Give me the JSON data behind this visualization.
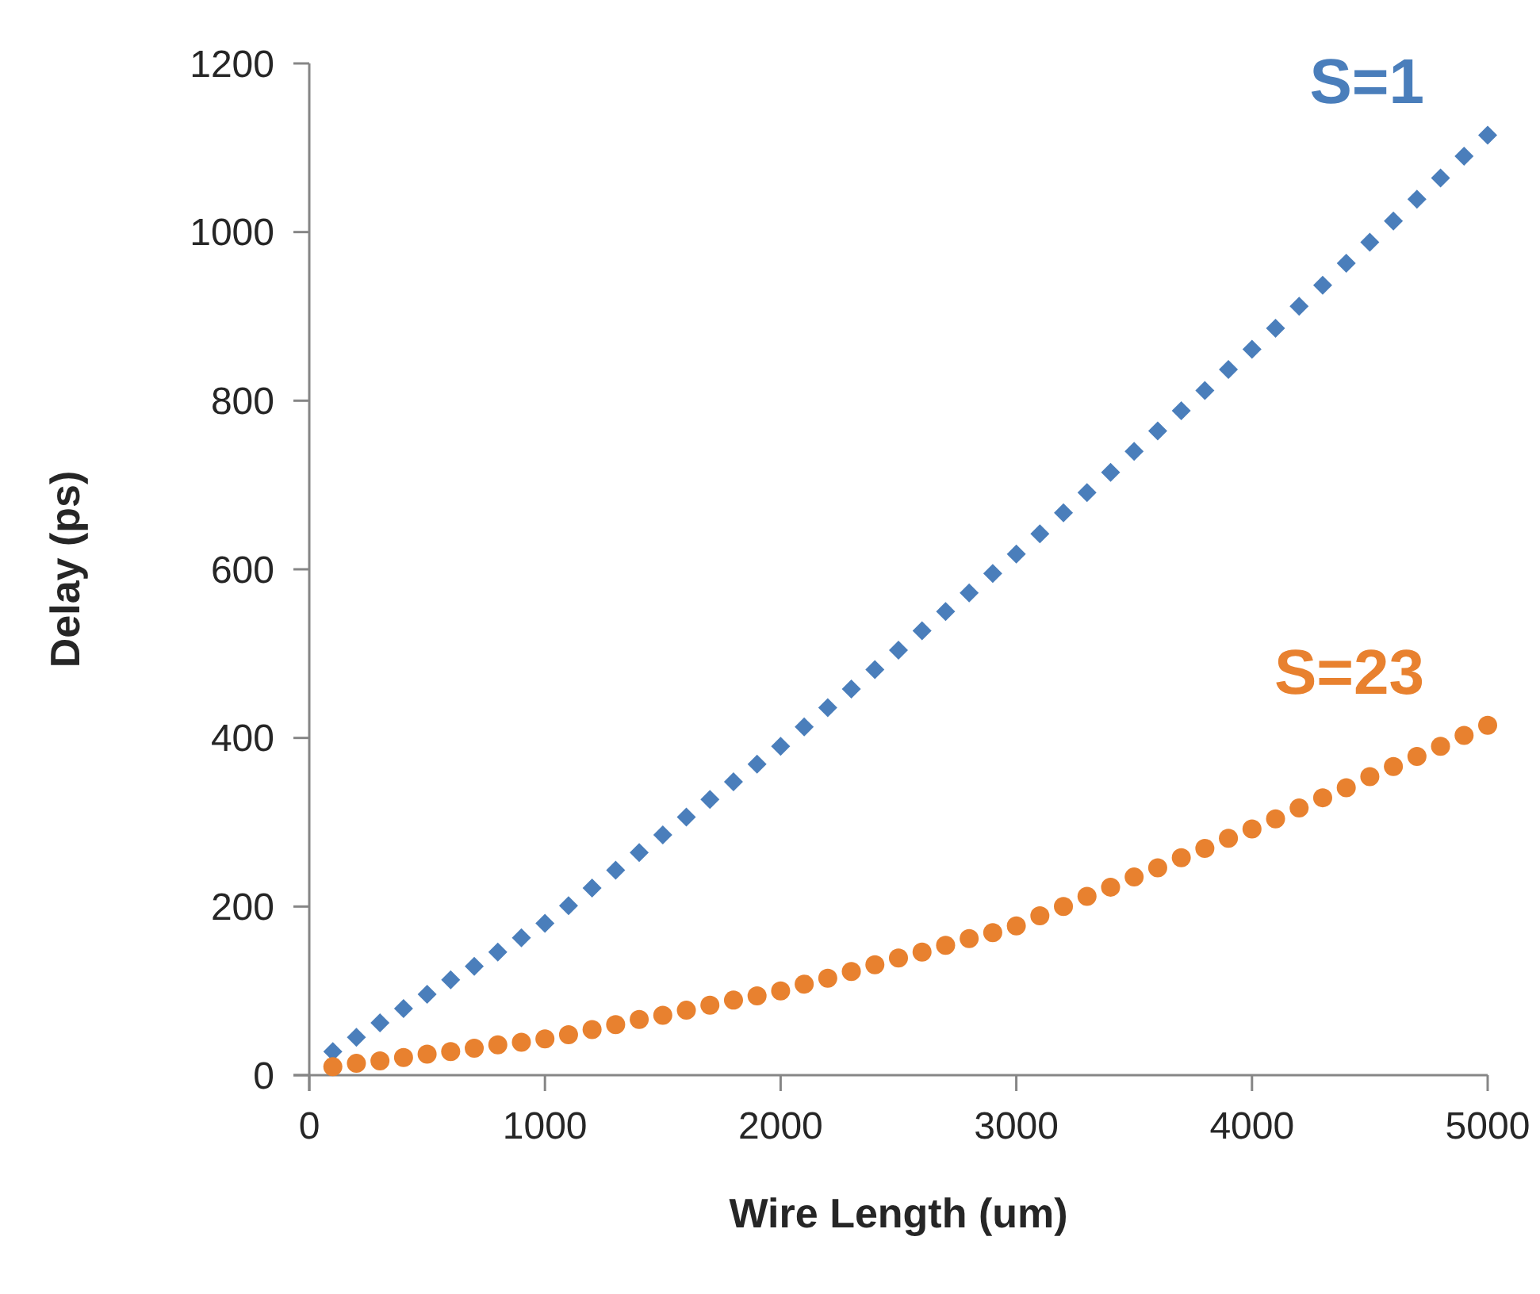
{
  "chart_data": {
    "type": "scatter",
    "xlabel": "Wire Length (um)",
    "ylabel": "Delay (ps)",
    "xlim": [
      0,
      5000
    ],
    "xticks": [
      0,
      1000,
      2000,
      3000,
      4000,
      5000
    ],
    "ylim": [
      0,
      1200
    ],
    "yticks": [
      0,
      200,
      400,
      600,
      800,
      1000,
      1200
    ],
    "grid": false,
    "legend": false,
    "x": [
      100,
      200,
      300,
      400,
      500,
      600,
      700,
      800,
      900,
      1000,
      1100,
      1200,
      1300,
      1400,
      1500,
      1600,
      1700,
      1800,
      1900,
      2000,
      2100,
      2200,
      2300,
      2400,
      2500,
      2600,
      2700,
      2800,
      2900,
      3000,
      3100,
      3200,
      3300,
      3400,
      3500,
      3600,
      3700,
      3800,
      3900,
      4000,
      4100,
      4200,
      4300,
      4400,
      4500,
      4600,
      4700,
      4800,
      4900,
      5000
    ],
    "series": [
      {
        "name": "S=1",
        "color": "#4a7ebb",
        "marker": "diamond",
        "values": [
          28,
          45,
          62,
          79,
          96,
          113,
          129,
          146,
          163,
          180,
          201,
          222,
          243,
          264,
          285,
          306,
          327,
          348,
          369,
          390,
          413,
          436,
          458,
          481,
          504,
          527,
          550,
          572,
          595,
          618,
          642,
          667,
          691,
          715,
          740,
          764,
          788,
          812,
          837,
          861,
          886,
          912,
          937,
          963,
          988,
          1013,
          1039,
          1064,
          1090,
          1115
        ]
      },
      {
        "name": "S=23",
        "color": "#e8812f",
        "marker": "circle",
        "values": [
          10,
          14,
          17,
          21,
          25,
          28,
          32,
          36,
          39,
          43,
          48,
          54,
          60,
          66,
          71,
          77,
          83,
          89,
          94,
          100,
          108,
          115,
          123,
          131,
          139,
          146,
          154,
          162,
          169,
          177,
          189,
          200,
          212,
          223,
          235,
          246,
          258,
          269,
          281,
          292,
          304,
          317,
          329,
          341,
          354,
          366,
          378,
          390,
          403,
          415
        ]
      }
    ]
  }
}
